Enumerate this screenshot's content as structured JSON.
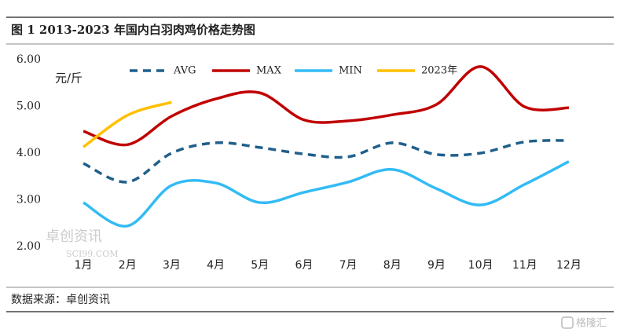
{
  "chart_data": {
    "type": "line",
    "title": "图 1 2013-2023 年国内白羽肉鸡价格走势图",
    "y_unit": "元/斤",
    "source": "数据来源：卓创资讯",
    "watermark": [
      "卓创资讯",
      "SCI99.COM"
    ],
    "brand": "格隆汇",
    "categories": [
      "1月",
      "2月",
      "3月",
      "4月",
      "5月",
      "6月",
      "7月",
      "8月",
      "9月",
      "10月",
      "11月",
      "12月"
    ],
    "series": [
      {
        "name": "AVG",
        "color": "#1f5f8b",
        "dashed": true,
        "values": [
          3.78,
          3.38,
          4.0,
          4.22,
          4.12,
          3.98,
          3.92,
          4.22,
          3.97,
          4.0,
          4.24,
          4.27
        ]
      },
      {
        "name": "MAX",
        "color": "#c00000",
        "dashed": false,
        "values": [
          4.47,
          4.18,
          4.79,
          5.16,
          5.29,
          4.71,
          4.69,
          4.82,
          5.04,
          5.85,
          4.99,
          4.97
        ]
      },
      {
        "name": "MIN",
        "color": "#33bbf5",
        "dashed": false,
        "values": [
          2.94,
          2.44,
          3.31,
          3.36,
          2.94,
          3.16,
          3.38,
          3.65,
          3.24,
          2.89,
          3.33,
          3.82
        ]
      },
      {
        "name": "2023年",
        "color": "#ffc000",
        "dashed": false,
        "values": [
          4.13,
          4.81,
          5.09,
          null,
          null,
          null,
          null,
          null,
          null,
          null,
          null,
          null
        ]
      }
    ],
    "ylim": [
      2,
      6
    ],
    "yticks": [
      {
        "value": 2,
        "label": "2.00"
      },
      {
        "value": 3,
        "label": "3.00"
      },
      {
        "value": 4,
        "label": "4.00"
      },
      {
        "value": 5,
        "label": "5.00"
      },
      {
        "value": 6,
        "label": "6.00"
      }
    ],
    "legend": "top"
  }
}
